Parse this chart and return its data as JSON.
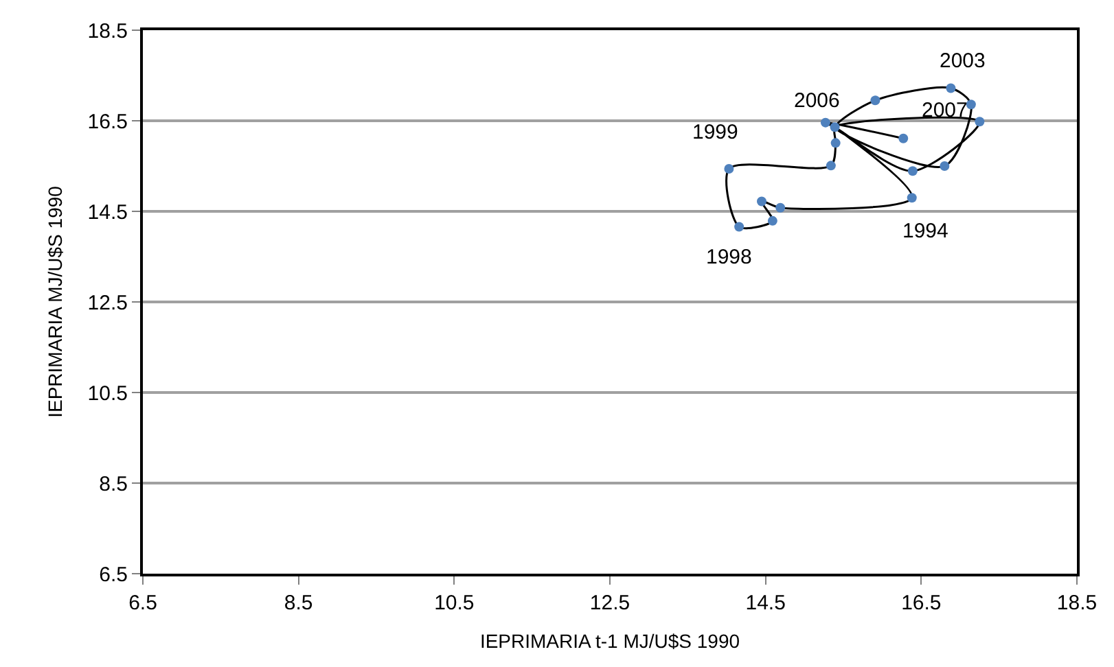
{
  "chart_data": {
    "type": "line",
    "xlabel": "IEPRIMARIA t-1 MJ/U$S 1990",
    "ylabel": "IEPRIMARIA MJ/U$S 1990",
    "series": [
      {
        "color": "#000000",
        "marker": "none",
        "x": [
          15.39,
          16.38,
          14.69,
          14.45,
          14.59,
          14.16,
          14.03,
          15.34,
          15.4,
          15.39,
          15.91,
          16.88,
          17.14,
          16.8,
          15.39,
          17.25,
          16.39,
          15.39,
          15.27,
          16.27
        ],
        "values": [
          16.36,
          14.8,
          14.58,
          14.72,
          14.29,
          14.16,
          15.44,
          15.51,
          16.01,
          16.36,
          16.95,
          17.22,
          16.86,
          15.5,
          16.36,
          16.48,
          15.39,
          16.36,
          16.46,
          16.11
        ]
      },
      {
        "type": "scatter",
        "color": "#4f81bd",
        "marker": "circle",
        "x": [
          15.39,
          16.38,
          14.69,
          14.45,
          14.59,
          14.16,
          14.03,
          15.34,
          15.4,
          15.91,
          16.88,
          17.14,
          16.8,
          17.25,
          16.39,
          15.27,
          16.27
        ],
        "values": [
          16.36,
          14.8,
          14.58,
          14.72,
          14.29,
          14.16,
          15.44,
          15.51,
          16.01,
          16.95,
          17.22,
          16.86,
          15.5,
          16.48,
          15.39,
          16.46,
          16.11
        ]
      }
    ],
    "xlim": [
      6.5,
      18.5
    ],
    "xticks": [
      6.5,
      8.5,
      10.5,
      12.5,
      14.5,
      16.5,
      18.5
    ],
    "ylim": [
      6.5,
      18.5
    ],
    "yticks": [
      6.5,
      8.5,
      10.5,
      12.5,
      14.5,
      16.5,
      18.5
    ],
    "grid": "y",
    "line_style": "solid",
    "annotations": [
      {
        "text": "2003",
        "x": 16.88,
        "y": 17.22
      },
      {
        "text": "2006",
        "x": 15.27,
        "y": 16.46
      },
      {
        "text": "2007",
        "x": 16.27,
        "y": 16.11
      },
      {
        "text": "1999",
        "x": 14.03,
        "y": 15.44
      },
      {
        "text": "1994",
        "x": 16.38,
        "y": 14.8
      },
      {
        "text": "1998",
        "x": 14.16,
        "y": 14.16
      }
    ]
  }
}
